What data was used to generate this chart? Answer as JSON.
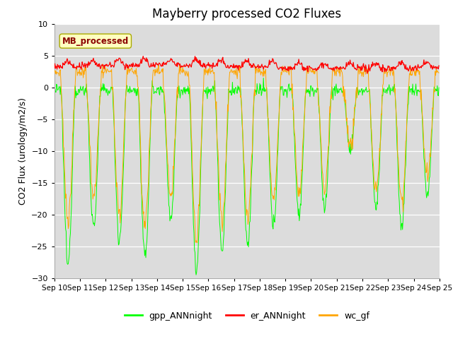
{
  "title": "Mayberry processed CO2 Fluxes",
  "ylabel": "CO2 Flux (urology/m2/s)",
  "ylim": [
    -30,
    10
  ],
  "yticks": [
    -30,
    -25,
    -20,
    -15,
    -10,
    -5,
    0,
    5,
    10
  ],
  "x_tick_labels": [
    "Sep 10",
    "Sep 11",
    "Sep 12",
    "Sep 13",
    "Sep 14",
    "Sep 15",
    "Sep 16",
    "Sep 17",
    "Sep 18",
    "Sep 19",
    "Sep 20",
    "Sep 21",
    "Sep 22",
    "Sep 23",
    "Sep 24",
    "Sep 25"
  ],
  "legend_labels": [
    "gpp_ANNnight",
    "er_ANNnight",
    "wc_gf"
  ],
  "colors": {
    "gpp": "#00FF00",
    "er": "#FF0000",
    "wc": "#FFA500"
  },
  "inset_label": "MB_processed",
  "inset_color": "#8B0000",
  "inset_bg": "#FFFFC0",
  "background_color": "#DCDCDC",
  "n_days": 15,
  "ppd": 48,
  "title_fontsize": 12,
  "axis_fontsize": 9,
  "tick_fontsize": 8
}
